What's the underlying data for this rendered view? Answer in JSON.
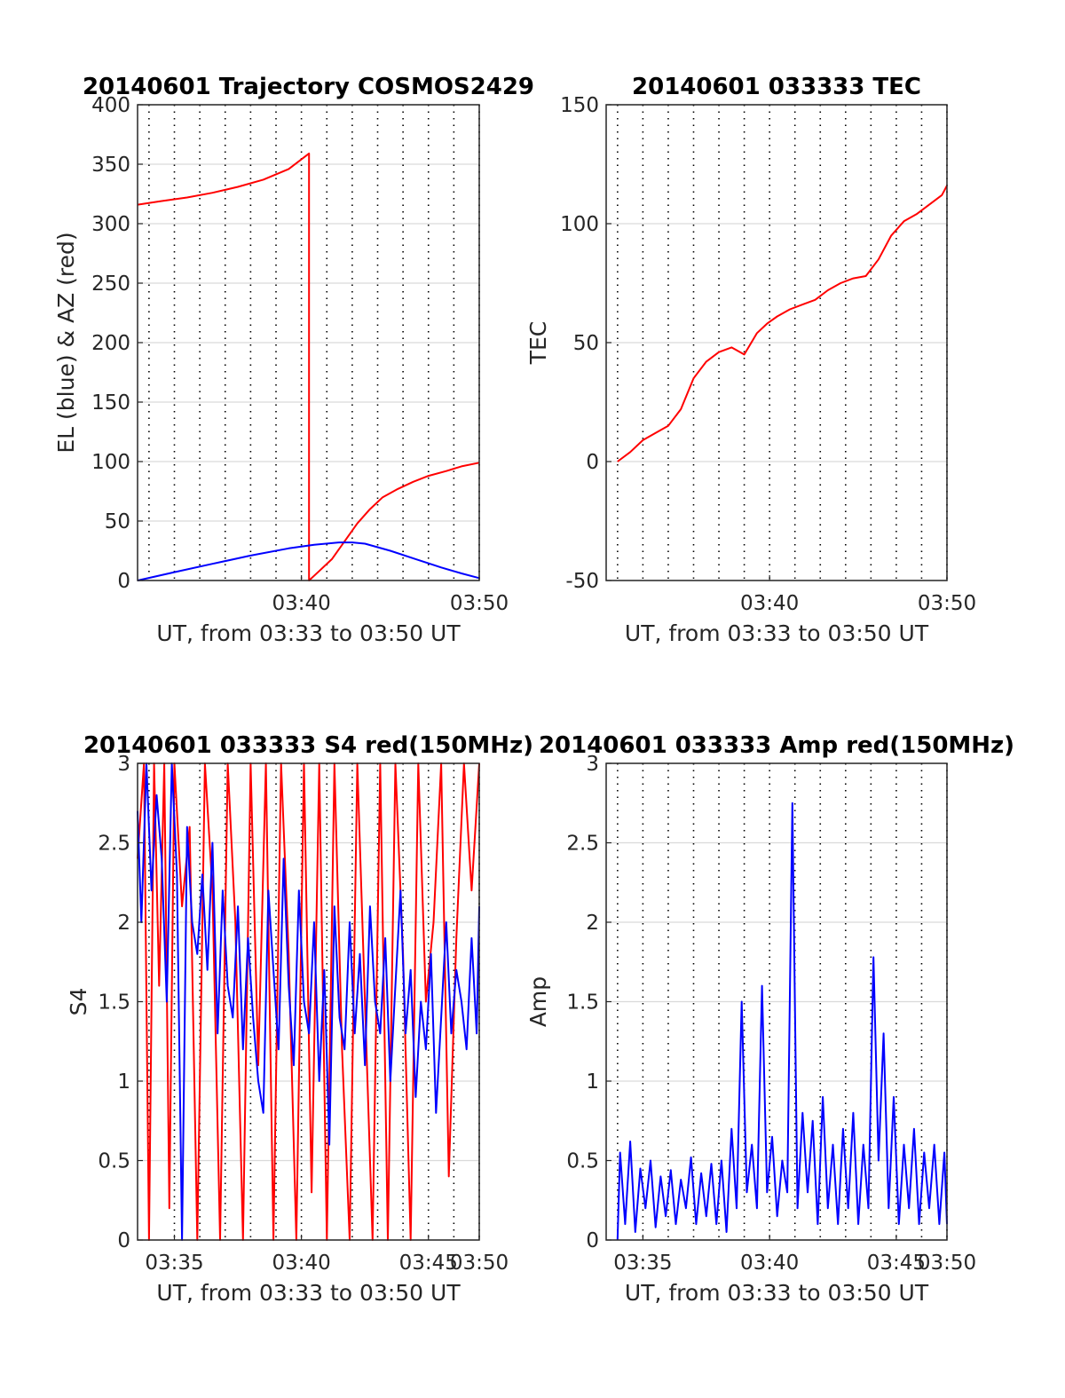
{
  "chart_data": [
    {
      "type": "line",
      "title": "20140601 Trajectory COSMOS2429",
      "xlabel": "UT, from 03:33 to 03:50 UT",
      "ylabel": "EL (blue) & AZ (red)",
      "xlim": [
        3.55,
        17
      ],
      "ylim": [
        0,
        400
      ],
      "xticks": [
        {
          "v": 10,
          "label": "03:40"
        },
        {
          "v": 17,
          "label": "03:50"
        }
      ],
      "yticks": [
        0,
        50,
        100,
        150,
        200,
        250,
        300,
        350,
        400
      ],
      "grid": "on",
      "series": [
        {
          "color": "#ff0000",
          "x": [
            3.55,
            4.5,
            5.5,
            6.5,
            7.5,
            8.5,
            9.5,
            10.3,
            10.3,
            10.7,
            11.2,
            11.7,
            12.2,
            12.7,
            13.2,
            13.8,
            14.4,
            15.0,
            15.7,
            16.3,
            17.0
          ],
          "y": [
            316,
            319,
            322,
            326,
            331,
            337,
            346,
            359,
            0,
            8,
            18,
            33,
            48,
            60,
            70,
            77,
            83,
            88,
            92,
            96,
            99
          ]
        },
        {
          "color": "#0000ff",
          "x": [
            3.55,
            5,
            6.5,
            8,
            9.5,
            10.5,
            11.5,
            12,
            12.5,
            13.5,
            14.5,
            15.5,
            16.3,
            17.0
          ],
          "y": [
            0,
            7,
            14,
            21,
            27,
            30,
            32,
            32,
            31,
            25,
            18,
            11,
            6,
            2
          ]
        }
      ]
    },
    {
      "type": "line",
      "title": "20140601 033333 TEC",
      "xlabel": "UT, from 03:33 to 03:50 UT",
      "ylabel": "TEC",
      "xlim": [
        3.55,
        17
      ],
      "ylim": [
        -50,
        150
      ],
      "xticks": [
        {
          "v": 10,
          "label": "03:40"
        },
        {
          "v": 17,
          "label": "03:50"
        }
      ],
      "yticks": [
        -50,
        0,
        50,
        100,
        150
      ],
      "grid": "on",
      "series": [
        {
          "color": "#ff0000",
          "x": [
            4.0,
            4.5,
            5.0,
            5.5,
            6.0,
            6.5,
            7.0,
            7.5,
            8.0,
            8.5,
            9.0,
            9.5,
            9.9,
            10.3,
            10.8,
            11.3,
            11.8,
            12.3,
            12.8,
            13.3,
            13.8,
            14.3,
            14.8,
            15.3,
            15.8,
            16.3,
            16.8,
            17.0
          ],
          "y": [
            0,
            4,
            9,
            12,
            15,
            22,
            35,
            42,
            46,
            48,
            45,
            54,
            58,
            61,
            64,
            66,
            68,
            72,
            75,
            77,
            78,
            85,
            95,
            101,
            104,
            108,
            112,
            116
          ]
        }
      ]
    },
    {
      "type": "line",
      "title": "20140601 033333 S4 red(150MHz)",
      "xlabel": "UT, from 03:33 to 03:50 UT",
      "ylabel": "S4",
      "xlim": [
        3.55,
        17
      ],
      "ylim": [
        0,
        3
      ],
      "xticks": [
        {
          "v": 5,
          "label": "03:35"
        },
        {
          "v": 10,
          "label": "03:40"
        },
        {
          "v": 15,
          "label": "03:45"
        },
        {
          "v": 17,
          "label": "03:50"
        }
      ],
      "yticks": [
        0,
        0.5,
        1,
        1.5,
        2,
        2.5,
        3
      ],
      "grid": "on",
      "series": [
        {
          "color": "#ff0000",
          "x": [
            3.55,
            3.8,
            4.0,
            4.2,
            4.4,
            4.6,
            4.8,
            5.0,
            5.3,
            5.6,
            5.9,
            6.2,
            6.5,
            6.8,
            7.1,
            7.4,
            7.7,
            8.0,
            8.3,
            8.6,
            8.9,
            9.2,
            9.5,
            9.8,
            10.1,
            10.4,
            10.7,
            11.0,
            11.3,
            11.6,
            11.9,
            12.2,
            12.5,
            12.8,
            13.1,
            13.4,
            13.7,
            14.0,
            14.3,
            14.6,
            14.9,
            15.2,
            15.5,
            15.8,
            16.1,
            16.4,
            16.7,
            17.0
          ],
          "y": [
            2.4,
            3,
            0,
            3,
            1.6,
            3,
            0.2,
            3,
            2.1,
            2.6,
            0,
            3,
            2.2,
            0,
            3,
            2.0,
            0,
            3,
            1.1,
            3,
            0,
            3,
            1.8,
            0,
            3,
            0.3,
            3,
            0,
            3,
            1.2,
            0,
            3,
            1.5,
            0,
            3,
            0,
            3,
            1.8,
            0,
            3,
            1.5,
            2.0,
            3,
            0.4,
            1.9,
            3,
            2.2,
            3
          ]
        },
        {
          "color": "#0000ff",
          "x": [
            3.55,
            3.7,
            3.9,
            4.1,
            4.3,
            4.5,
            4.7,
            4.9,
            5.1,
            5.3,
            5.5,
            5.7,
            5.9,
            6.1,
            6.3,
            6.5,
            6.7,
            6.9,
            7.1,
            7.3,
            7.5,
            7.7,
            7.9,
            8.1,
            8.3,
            8.5,
            8.7,
            8.9,
            9.1,
            9.3,
            9.5,
            9.7,
            9.9,
            10.1,
            10.3,
            10.5,
            10.7,
            10.9,
            11.1,
            11.3,
            11.5,
            11.7,
            11.9,
            12.1,
            12.3,
            12.5,
            12.7,
            12.9,
            13.1,
            13.3,
            13.5,
            13.7,
            13.9,
            14.1,
            14.3,
            14.5,
            14.7,
            14.9,
            15.1,
            15.3,
            15.5,
            15.7,
            15.9,
            16.1,
            16.3,
            16.5,
            16.7,
            16.9,
            17.0
          ],
          "y": [
            2.7,
            2.0,
            3.0,
            2.2,
            2.8,
            2.4,
            1.5,
            3.0,
            2.3,
            0.0,
            2.6,
            2.0,
            1.8,
            2.3,
            1.7,
            2.5,
            1.3,
            2.2,
            1.6,
            1.4,
            2.1,
            1.2,
            1.9,
            1.4,
            1.0,
            0.8,
            2.2,
            1.7,
            1.2,
            2.4,
            1.6,
            1.1,
            2.2,
            1.5,
            1.3,
            2.0,
            1.0,
            1.7,
            0.6,
            2.1,
            1.4,
            1.2,
            2.0,
            1.3,
            1.8,
            1.1,
            2.1,
            1.5,
            1.3,
            1.9,
            1.0,
            1.6,
            2.2,
            1.3,
            1.7,
            0.9,
            1.5,
            1.2,
            1.8,
            0.8,
            1.4,
            2.0,
            1.3,
            1.7,
            1.5,
            1.2,
            1.9,
            1.3,
            2.1
          ]
        }
      ]
    },
    {
      "type": "line",
      "title": "20140601 033333 Amp red(150MHz)",
      "xlabel": "UT, from 03:33 to 03:50 UT",
      "ylabel": "Amp",
      "xlim": [
        3.55,
        17
      ],
      "ylim": [
        0,
        3
      ],
      "xticks": [
        {
          "v": 5,
          "label": "03:35"
        },
        {
          "v": 10,
          "label": "03:40"
        },
        {
          "v": 15,
          "label": "03:45"
        },
        {
          "v": 17,
          "label": "03:50"
        }
      ],
      "yticks": [
        0,
        0.5,
        1,
        1.5,
        2,
        2.5,
        3
      ],
      "grid": "on",
      "series": [
        {
          "color": "#0000ff",
          "x": [
            4.0,
            4.1,
            4.3,
            4.5,
            4.7,
            4.9,
            5.1,
            5.3,
            5.5,
            5.7,
            5.9,
            6.1,
            6.3,
            6.5,
            6.7,
            6.9,
            7.1,
            7.3,
            7.5,
            7.7,
            7.9,
            8.1,
            8.3,
            8.5,
            8.7,
            8.9,
            9.1,
            9.3,
            9.5,
            9.7,
            9.9,
            10.1,
            10.3,
            10.5,
            10.7,
            10.9,
            11.1,
            11.3,
            11.5,
            11.7,
            11.9,
            12.1,
            12.3,
            12.5,
            12.7,
            12.9,
            13.1,
            13.3,
            13.5,
            13.7,
            13.9,
            14.1,
            14.3,
            14.5,
            14.7,
            14.9,
            15.1,
            15.3,
            15.5,
            15.7,
            15.9,
            16.1,
            16.3,
            16.5,
            16.7,
            16.9,
            17.0
          ],
          "y": [
            0,
            0.55,
            0.1,
            0.62,
            0.05,
            0.45,
            0.2,
            0.5,
            0.08,
            0.4,
            0.15,
            0.44,
            0.1,
            0.38,
            0.2,
            0.52,
            0.1,
            0.42,
            0.15,
            0.48,
            0.1,
            0.5,
            0.05,
            0.7,
            0.2,
            1.5,
            0.3,
            0.6,
            0.2,
            1.6,
            0.3,
            0.65,
            0.15,
            0.5,
            0.3,
            2.75,
            0.2,
            0.8,
            0.3,
            0.75,
            0.1,
            0.9,
            0.2,
            0.6,
            0.1,
            0.7,
            0.2,
            0.8,
            0.1,
            0.6,
            0.2,
            1.78,
            0.5,
            1.3,
            0.2,
            0.9,
            0.1,
            0.6,
            0.2,
            0.7,
            0.1,
            0.55,
            0.2,
            0.6,
            0.1,
            0.55,
            0.1
          ]
        }
      ]
    }
  ]
}
